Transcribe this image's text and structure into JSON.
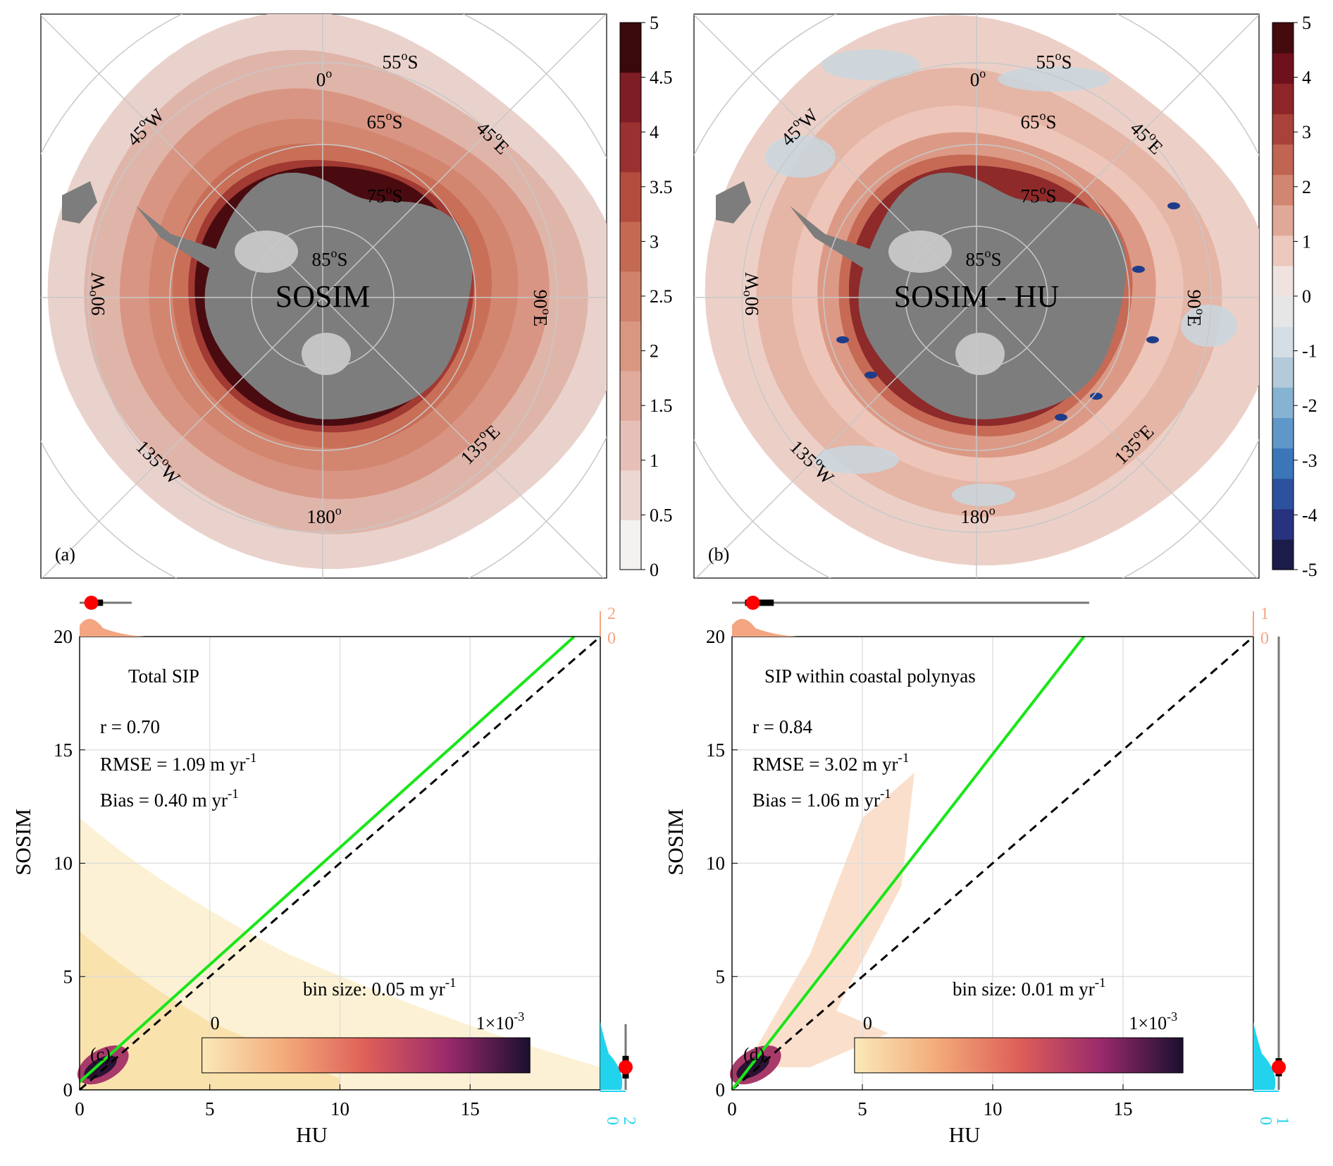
{
  "colors": {
    "land": "#7d7d7d",
    "shelf": "#c4c4c4",
    "grid": "#c8c8c8",
    "fit_line": "#19e619",
    "top_marginal": "#f4a582",
    "right_marginal": "#22d3ee",
    "median_dot": "#ff0000",
    "seq_scale": [
      "#f4f1f1",
      "#ecd7d3",
      "#e6c0b8",
      "#e0ab9d",
      "#d99782",
      "#d1826a",
      "#c46a52",
      "#b24c3d",
      "#9a3030",
      "#7f1d25",
      "#5e1119",
      "#3a0909"
    ],
    "div_scale": [
      "#1c1c4a",
      "#27337e",
      "#2c519e",
      "#3a76b8",
      "#5f97c8",
      "#87b3d2",
      "#b2cad9",
      "#d5dee5",
      "#e6e6e6",
      "#f0e3df",
      "#ecc8bd",
      "#e0a896",
      "#d08670",
      "#bf6552",
      "#a8423a",
      "#8e2528",
      "#6f111c",
      "#440a0e"
    ]
  },
  "panels": {
    "a": {
      "tag": "(a)",
      "center_label": "SOSIM",
      "colorbar_ticks": [
        "5",
        "4.5",
        "4",
        "3.5",
        "3",
        "2.5",
        "2",
        "1.5",
        "1",
        "0.5",
        "0"
      ],
      "lon_labels": {
        "n": "0o",
        "ne": "45oE",
        "e": "90oE",
        "se": "135oE",
        "s": "180o",
        "sw": "135oW",
        "w": "90oW",
        "nw": "45oW"
      },
      "lat_labels": [
        "55oS",
        "65oS",
        "75oS",
        "85oS"
      ]
    },
    "b": {
      "tag": "(b)",
      "center_label": "SOSIM - HU",
      "colorbar_ticks": [
        "5",
        "4",
        "3",
        "2",
        "1",
        "0",
        "-1",
        "-2",
        "-3",
        "-4",
        "-5"
      ],
      "lon_labels": {
        "n": "0o",
        "ne": "45oE",
        "e": "90oE",
        "se": "135oE",
        "s": "180o",
        "sw": "135oW",
        "w": "90oW",
        "nw": "45oW"
      },
      "lat_labels": [
        "55oS",
        "65oS",
        "75oS",
        "85oS"
      ]
    },
    "c": {
      "tag": "(c)",
      "title": "Total SIP",
      "r": "r = 0.70",
      "rmse": "RMSE = 1.09 m yr-1",
      "bias": "Bias = 0.40 m yr-1",
      "bin_size": "bin size: 0.05 m yr-1",
      "density_min": "0",
      "density_max": "1×10-3",
      "top_marg_ticks": [
        "2",
        "0"
      ],
      "right_marg_ticks": [
        "0",
        "2"
      ]
    },
    "d": {
      "tag": "(d)",
      "title": "SIP within coastal polynyas",
      "r": "r = 0.84",
      "rmse": "RMSE = 3.02 m yr-1",
      "bias": "Bias = 1.06 m yr-1",
      "bin_size": "bin size: 0.01 m yr-1",
      "density_min": "0",
      "density_max": "1×10-3",
      "top_marg_ticks": [
        "1",
        "0"
      ],
      "right_marg_ticks": [
        "0",
        "1"
      ]
    }
  },
  "chart_data": [
    {
      "type": "heatmap",
      "panel": "c",
      "xlabel": "HU",
      "ylabel": "SOSIM",
      "xlim": [
        0,
        20
      ],
      "ylim": [
        0,
        20
      ],
      "xticks": [
        0,
        5,
        10,
        15
      ],
      "yticks": [
        0,
        5,
        10,
        15,
        20
      ],
      "grid": true,
      "fit_line": {
        "x": [
          0,
          19
        ],
        "y": [
          0.35,
          20
        ]
      },
      "one_to_one_line": {
        "x": [
          0,
          20
        ],
        "y": [
          0,
          20
        ]
      },
      "colorbar": {
        "min": 0,
        "max": 0.001
      },
      "top_marginal_box": {
        "median": 0.45,
        "q1": 0.2,
        "q3": 0.9,
        "whisker_max": 2.0
      },
      "right_marginal_box": {
        "median": 1.0,
        "q1": 0.5,
        "q3": 1.5,
        "whisker_max": 2.9
      }
    },
    {
      "type": "heatmap",
      "panel": "d",
      "xlabel": "HU",
      "ylabel": "SOSIM",
      "xlim": [
        0,
        20
      ],
      "ylim": [
        0,
        20
      ],
      "xticks": [
        0,
        5,
        10,
        15
      ],
      "yticks": [
        0,
        5,
        10,
        15,
        20
      ],
      "grid": true,
      "fit_line": {
        "x": [
          0,
          13.5
        ],
        "y": [
          0,
          20
        ]
      },
      "one_to_one_line": {
        "x": [
          0,
          20
        ],
        "y": [
          0,
          20
        ]
      },
      "colorbar": {
        "min": 0,
        "max": 0.001
      },
      "top_marginal_box": {
        "median": 0.8,
        "q1": 0.5,
        "q3": 1.6,
        "whisker_max": 13.7
      },
      "right_marginal_box": {
        "median": 1.0,
        "q1": 0.6,
        "q3": 1.4,
        "whisker_max": 20
      }
    }
  ]
}
